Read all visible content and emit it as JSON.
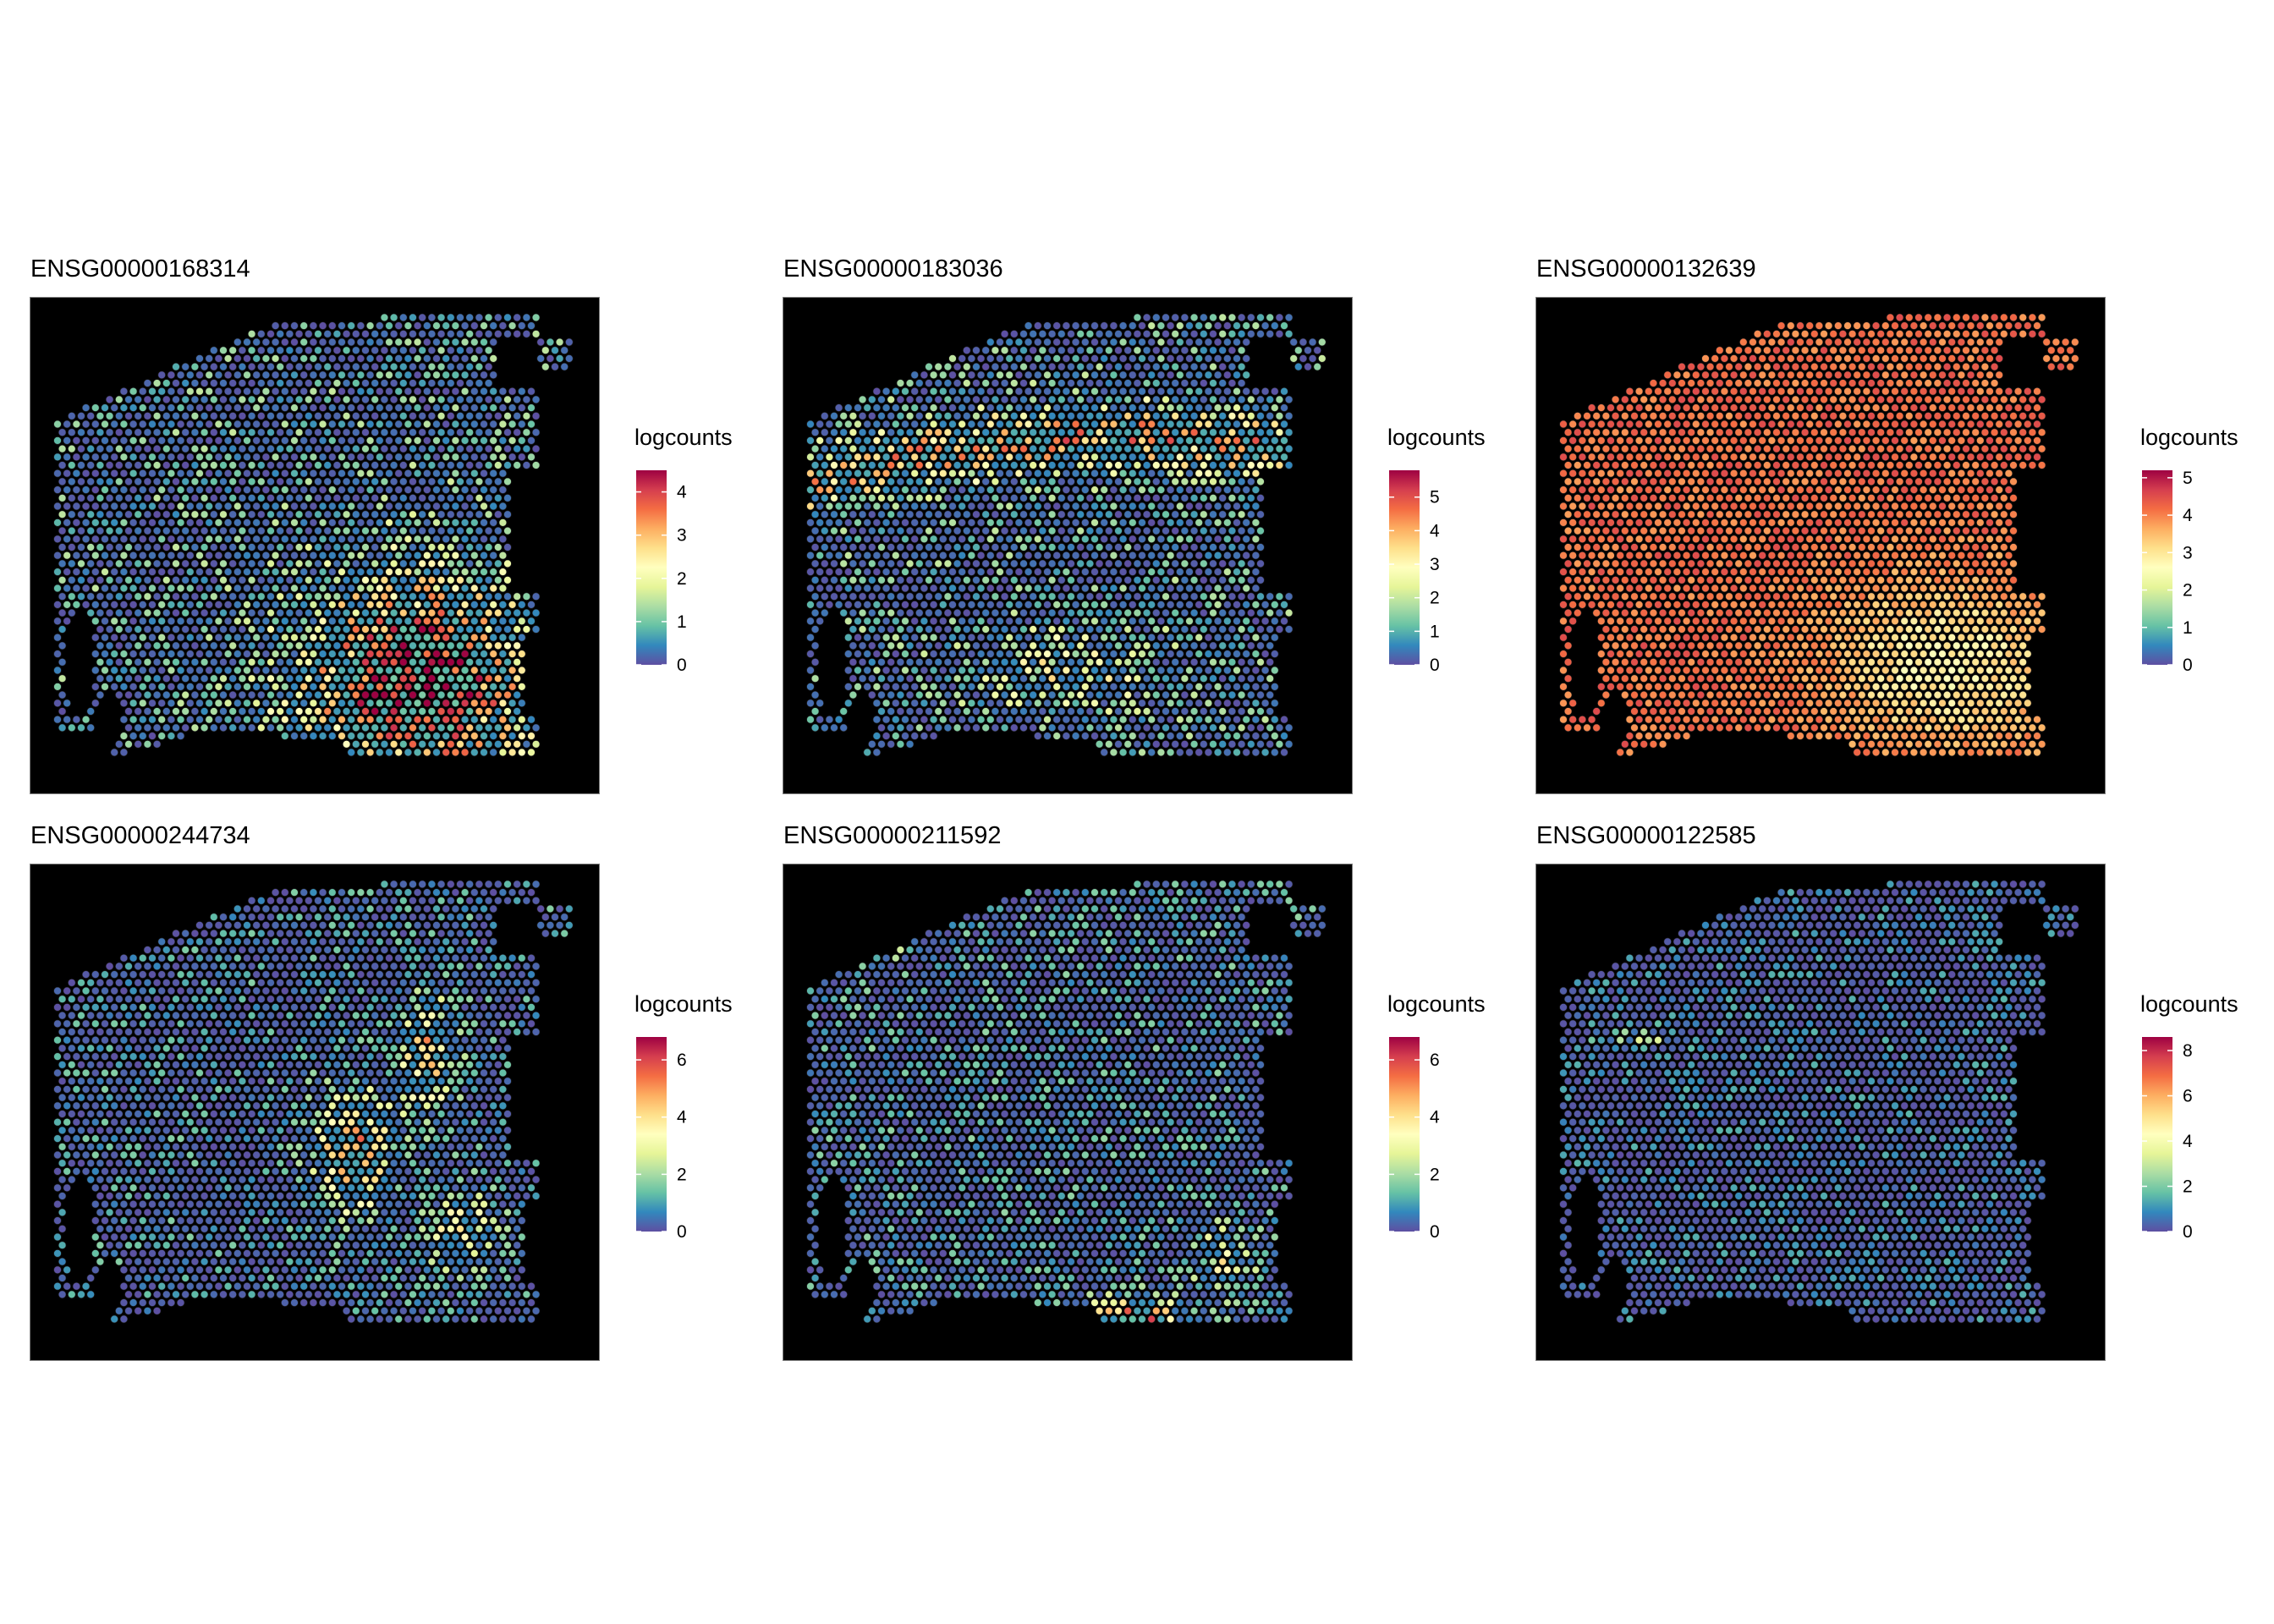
{
  "chart_data": [
    {
      "type": "spatial-scatter",
      "title": "ENSG00000168314",
      "legend_title": "logcounts",
      "value_range": [
        0,
        4.5
      ],
      "legend_ticks": [
        0,
        1,
        2,
        3,
        4
      ],
      "pattern": "lower-right hotspot",
      "background": "#000000"
    },
    {
      "type": "spatial-scatter",
      "title": "ENSG00000183036",
      "legend_title": "logcounts",
      "value_range": [
        0,
        5.8
      ],
      "legend_ticks": [
        0,
        1,
        2,
        3,
        4,
        5
      ],
      "pattern": "upper diagonal band",
      "background": "#000000"
    },
    {
      "type": "spatial-scatter",
      "title": "ENSG00000132639",
      "legend_title": "logcounts",
      "value_range": [
        0,
        5.2
      ],
      "legend_ticks": [
        0,
        1,
        2,
        3,
        4,
        5
      ],
      "pattern": "high everywhere, lower at lower-right",
      "background": "#000000"
    },
    {
      "type": "spatial-scatter",
      "title": "ENSG00000244734",
      "legend_title": "logcounts",
      "value_range": [
        0,
        6.8
      ],
      "legend_ticks": [
        0,
        2,
        4,
        6
      ],
      "pattern": "central streak",
      "background": "#000000"
    },
    {
      "type": "spatial-scatter",
      "title": "ENSG00000211592",
      "legend_title": "logcounts",
      "value_range": [
        0,
        6.8
      ],
      "legend_ticks": [
        0,
        2,
        4,
        6
      ],
      "pattern": "bottom-center hotspot, upper-left patch",
      "background": "#000000"
    },
    {
      "type": "spatial-scatter",
      "title": "ENSG00000122585",
      "legend_title": "logcounts",
      "value_range": [
        0,
        8.6
      ],
      "legend_ticks": [
        0,
        2,
        4,
        6,
        8
      ],
      "pattern": "sparse, mostly low",
      "background": "#000000"
    }
  ],
  "colors": {
    "palette": [
      "#5E4FA2",
      "#3288BD",
      "#66C2A5",
      "#ABDDA4",
      "#E6F598",
      "#FFFFBF",
      "#FEE08B",
      "#FDAE61",
      "#F46D43",
      "#D53E4F",
      "#9E0142"
    ]
  }
}
